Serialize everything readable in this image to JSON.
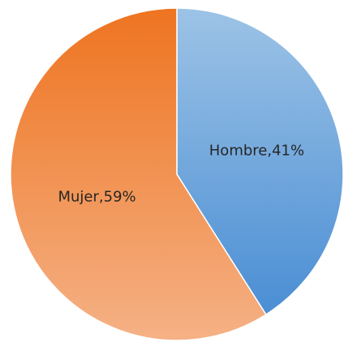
{
  "chart_data": {
    "type": "pie",
    "values": [
      41,
      59
    ],
    "value_labels": [
      "Hombre,41%",
      "Mujer,59%"
    ],
    "colors": [
      [
        "#9dc3e6",
        "#4a8ed4"
      ],
      [
        "#ee7420",
        "#f5b185"
      ]
    ]
  }
}
